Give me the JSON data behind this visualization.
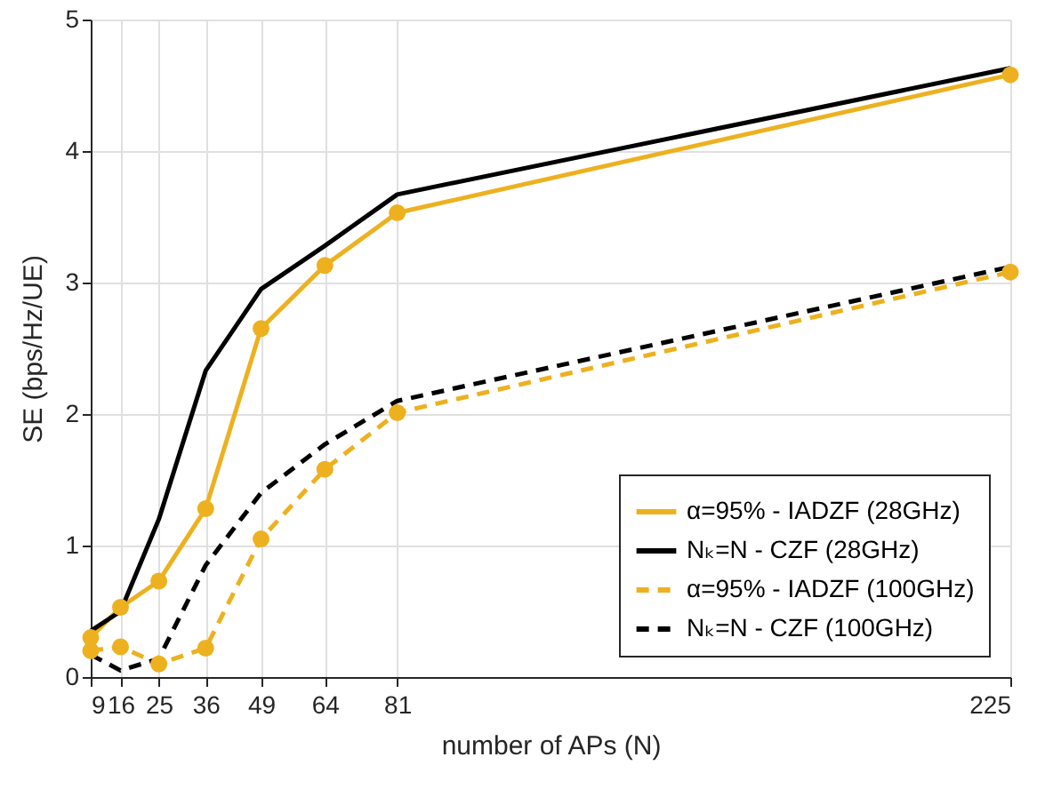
{
  "chart_data": {
    "type": "line",
    "xlabel": "number of APs (N)",
    "ylabel": "SE (bps/Hz/UE)",
    "x": [
      9,
      16,
      25,
      36,
      49,
      64,
      81,
      225
    ],
    "series": [
      {
        "name": "α=95% - IADZF (28GHz)",
        "color": "#edb120",
        "line_style": "solid",
        "marker": "circle",
        "values": [
          0.3,
          0.53,
          0.73,
          1.28,
          2.65,
          3.13,
          3.53,
          4.58
        ]
      },
      {
        "name": "Nₖ=N   - CZF (28GHz)",
        "color": "#000000",
        "line_style": "solid",
        "marker": "none",
        "values": [
          0.35,
          0.5,
          1.2,
          2.33,
          2.95,
          3.28,
          3.67,
          4.63
        ]
      },
      {
        "name": "α=95% - IADZF (100GHz)",
        "color": "#edb120",
        "line_style": "dashed",
        "marker": "circle",
        "values": [
          0.2,
          0.23,
          0.1,
          0.22,
          1.05,
          1.58,
          2.01,
          3.08
        ]
      },
      {
        "name": "Nₖ=N   - CZF (100GHz)",
        "color": "#000000",
        "line_style": "dashed",
        "marker": "none",
        "values": [
          0.17,
          0.05,
          0.14,
          0.85,
          1.4,
          1.77,
          2.1,
          3.12
        ]
      }
    ],
    "xlim": [
      9,
      225
    ],
    "xticks": [
      9,
      16,
      25,
      36,
      49,
      64,
      81,
      225
    ],
    "ylim": [
      0,
      5
    ],
    "yticks": [
      0,
      1,
      2,
      3,
      4,
      5
    ],
    "grid": true,
    "legend": "bottom right"
  }
}
